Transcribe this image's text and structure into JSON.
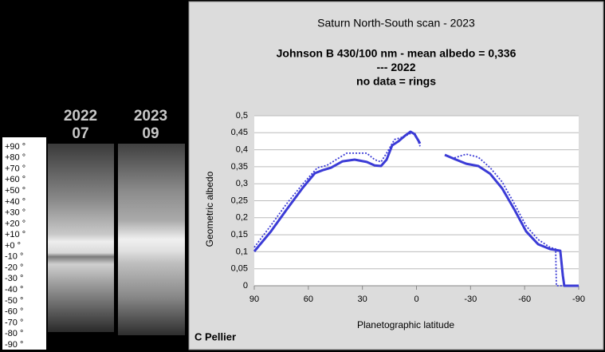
{
  "scan_panel": {
    "columns": [
      {
        "year": "2022",
        "month": "07"
      },
      {
        "year": "2023",
        "month": "09"
      }
    ],
    "latitude_labels": [
      "+90 °",
      "+80 °",
      "+70 °",
      "+60 °",
      "+50 °",
      "+40 °",
      "+30 °",
      "+20 °",
      "+10 °",
      "+0 °",
      "-10 °",
      "-20 °",
      "-30 °",
      "-40 °",
      "-50 °",
      "-60 °",
      "-70 °",
      "-80 °",
      "-90 °"
    ]
  },
  "chart_data": {
    "type": "line",
    "title": "Saturn North-South scan - 2023",
    "subtitle_lines": [
      "Johnson B 430/100 nm - mean albedo = 0,336",
      "--- 2022",
      "no data = rings"
    ],
    "x_label": "Planetographic latitude",
    "y_label": "Geometric albedo",
    "credit": "C Pellier",
    "xlim": [
      90,
      -90
    ],
    "xticks": [
      90,
      60,
      30,
      0,
      -30,
      -60,
      -90
    ],
    "ylim": [
      0,
      0.5
    ],
    "yticks": [
      0,
      {
        "value": 0.05,
        "label": "0,05"
      },
      {
        "value": 0.1,
        "label": "0,1"
      },
      {
        "value": 0.15,
        "label": "0,15"
      },
      {
        "value": 0.2,
        "label": "0,2"
      },
      {
        "value": 0.25,
        "label": "0,25"
      },
      {
        "value": 0.3,
        "label": "0,3"
      },
      {
        "value": 0.35,
        "label": "0,35"
      },
      {
        "value": 0.4,
        "label": "0,4"
      },
      {
        "value": 0.45,
        "label": "0,45"
      },
      {
        "value": 0.5,
        "label": "0,5"
      }
    ],
    "grid": true,
    "series": [
      {
        "color": "#3b3bd6",
        "dash": false,
        "x": [
          90,
          80.7,
          71.9,
          63,
          56.4,
          52,
          47.5,
          41,
          34.3,
          27.6,
          23.2,
          19.7,
          16.6,
          13.5,
          10,
          6.4,
          3.3,
          1.1,
          -0.7,
          -2,
          null,
          -15.7,
          -21,
          -27.6,
          -34.3,
          -40.9,
          -47.6,
          -54.2,
          -60.8,
          -67.5,
          -74.1,
          -79.8,
          -81.2,
          -82,
          -90
        ],
        "values": [
          0.101,
          0.16,
          0.225,
          0.289,
          0.331,
          0.34,
          0.347,
          0.366,
          0.371,
          0.364,
          0.354,
          0.352,
          0.371,
          0.413,
          0.425,
          0.441,
          0.453,
          0.446,
          0.43,
          0.418,
          null,
          0.385,
          0.373,
          0.359,
          0.352,
          0.329,
          0.286,
          0.225,
          0.16,
          0.122,
          0.108,
          0.103,
          0.03,
          0,
          0
        ]
      },
      {
        "color": "#3b3bd6",
        "dash": true,
        "x": [
          90,
          80.7,
          71.9,
          63,
          55,
          49.7,
          43,
          38.7,
          27.6,
          23.2,
          19.7,
          16.6,
          12.2,
          7.7,
          3.3,
          1.1,
          -1.1,
          -2,
          null,
          -21,
          -27.6,
          -34.3,
          -40.9,
          -47.6,
          -54.2,
          -60.8,
          -67.5,
          -74.1,
          -77.2,
          -77.6,
          -90
        ],
        "values": [
          0.113,
          0.178,
          0.242,
          0.3,
          0.347,
          0.354,
          0.376,
          0.39,
          0.39,
          0.371,
          0.364,
          0.39,
          0.43,
          0.437,
          0.448,
          0.451,
          0.423,
          0.41,
          null,
          0.376,
          0.387,
          0.378,
          0.347,
          0.305,
          0.242,
          0.176,
          0.136,
          0.113,
          0.108,
          0,
          0
        ]
      }
    ]
  }
}
